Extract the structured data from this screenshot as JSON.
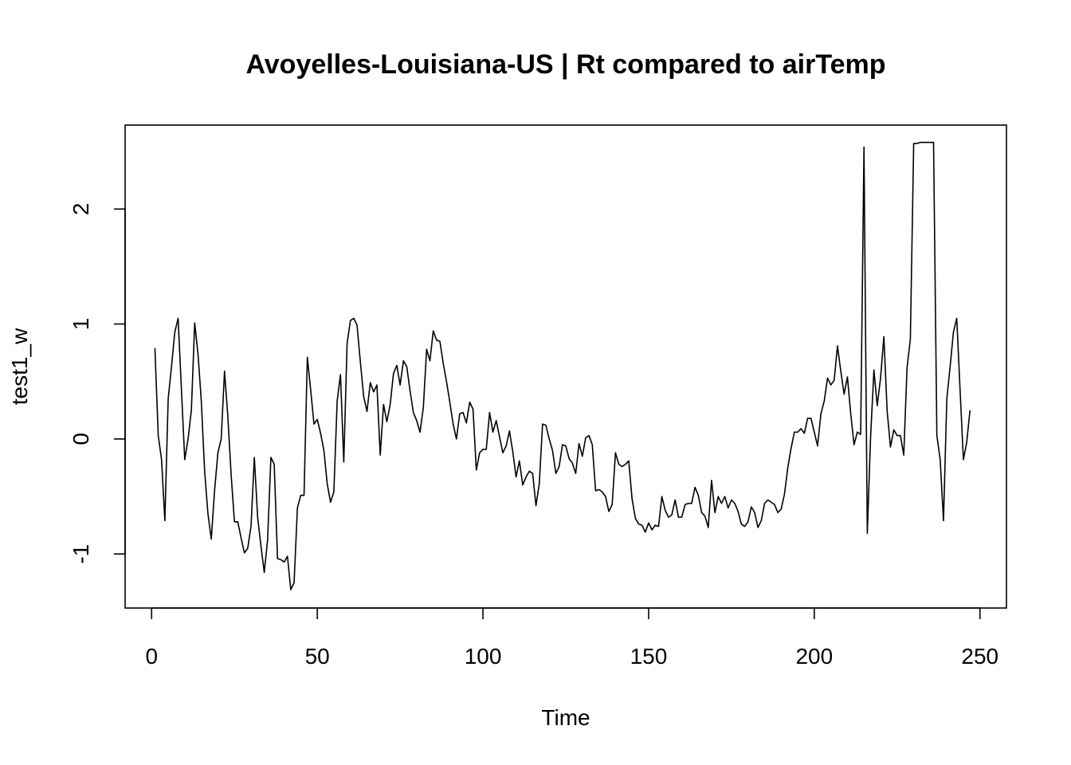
{
  "chart_data": {
    "type": "line",
    "title": "Avoyelles-Louisiana-US | Rt compared to airTemp",
    "xlabel": "Time",
    "ylabel": "test1_w",
    "xlim": [
      -8,
      258
    ],
    "ylim": [
      -1.47,
      2.73
    ],
    "x_ticks": [
      0,
      50,
      100,
      150,
      200,
      250
    ],
    "y_ticks": [
      -1,
      0,
      1,
      2
    ],
    "grid": false,
    "legend": "none",
    "line_color": "#000000",
    "series": [
      {
        "values": [
          0.79,
          0.03,
          -0.18,
          -0.71,
          0.35,
          0.63,
          0.93,
          1.05,
          0.43,
          -0.18,
          0.0,
          0.25,
          1.01,
          0.74,
          0.33,
          -0.28,
          -0.65,
          -0.87,
          -0.45,
          -0.12,
          0.0,
          0.59,
          0.2,
          -0.31,
          -0.72,
          -0.72,
          -0.86,
          -0.99,
          -0.95,
          -0.76,
          -0.16,
          -0.68,
          -0.93,
          -1.16,
          -0.88,
          -0.16,
          -0.22,
          -1.04,
          -1.05,
          -1.07,
          -1.02,
          -1.31,
          -1.25,
          -0.6,
          -0.49,
          -0.49,
          0.71,
          0.43,
          0.13,
          0.17,
          0.05,
          -0.1,
          -0.39,
          -0.55,
          -0.46,
          0.33,
          0.56,
          -0.2,
          0.83,
          1.03,
          1.05,
          0.99,
          0.67,
          0.37,
          0.24,
          0.49,
          0.41,
          0.47,
          -0.14,
          0.3,
          0.15,
          0.3,
          0.57,
          0.64,
          0.47,
          0.68,
          0.63,
          0.42,
          0.23,
          0.16,
          0.06,
          0.27,
          0.78,
          0.68,
          0.94,
          0.86,
          0.85,
          0.66,
          0.5,
          0.32,
          0.13,
          0.0,
          0.22,
          0.23,
          0.14,
          0.32,
          0.26,
          -0.27,
          -0.12,
          -0.09,
          -0.09,
          0.23,
          0.06,
          0.16,
          0.02,
          -0.12,
          -0.06,
          0.07,
          -0.11,
          -0.33,
          -0.19,
          -0.4,
          -0.33,
          -0.28,
          -0.3,
          -0.58,
          -0.39,
          0.13,
          0.12,
          0.0,
          -0.1,
          -0.3,
          -0.24,
          -0.05,
          -0.06,
          -0.17,
          -0.21,
          -0.3,
          -0.04,
          -0.15,
          0.01,
          0.03,
          -0.05,
          -0.45,
          -0.44,
          -0.46,
          -0.5,
          -0.63,
          -0.57,
          -0.12,
          -0.22,
          -0.24,
          -0.22,
          -0.19,
          -0.52,
          -0.69,
          -0.74,
          -0.75,
          -0.81,
          -0.73,
          -0.79,
          -0.75,
          -0.76,
          -0.5,
          -0.62,
          -0.68,
          -0.66,
          -0.53,
          -0.68,
          -0.68,
          -0.57,
          -0.56,
          -0.56,
          -0.42,
          -0.49,
          -0.64,
          -0.67,
          -0.77,
          -0.36,
          -0.64,
          -0.5,
          -0.56,
          -0.5,
          -0.6,
          -0.53,
          -0.56,
          -0.63,
          -0.74,
          -0.76,
          -0.72,
          -0.59,
          -0.64,
          -0.77,
          -0.71,
          -0.56,
          -0.53,
          -0.55,
          -0.57,
          -0.64,
          -0.61,
          -0.48,
          -0.25,
          -0.08,
          0.06,
          0.06,
          0.09,
          0.05,
          0.18,
          0.18,
          0.06,
          -0.06,
          0.22,
          0.33,
          0.53,
          0.47,
          0.51,
          0.81,
          0.59,
          0.39,
          0.54,
          0.22,
          -0.05,
          0.06,
          0.04,
          2.54,
          -0.82,
          0.02,
          0.6,
          0.29,
          0.53,
          0.89,
          0.24,
          -0.07,
          0.08,
          0.03,
          0.03,
          -0.14,
          0.62,
          0.87,
          2.57,
          2.57,
          2.58,
          2.58,
          2.58,
          2.58,
          2.58,
          0.03,
          -0.18,
          -0.71,
          0.35,
          0.63,
          0.93,
          1.05,
          0.43,
          -0.18,
          -0.03,
          0.25
        ]
      }
    ]
  }
}
